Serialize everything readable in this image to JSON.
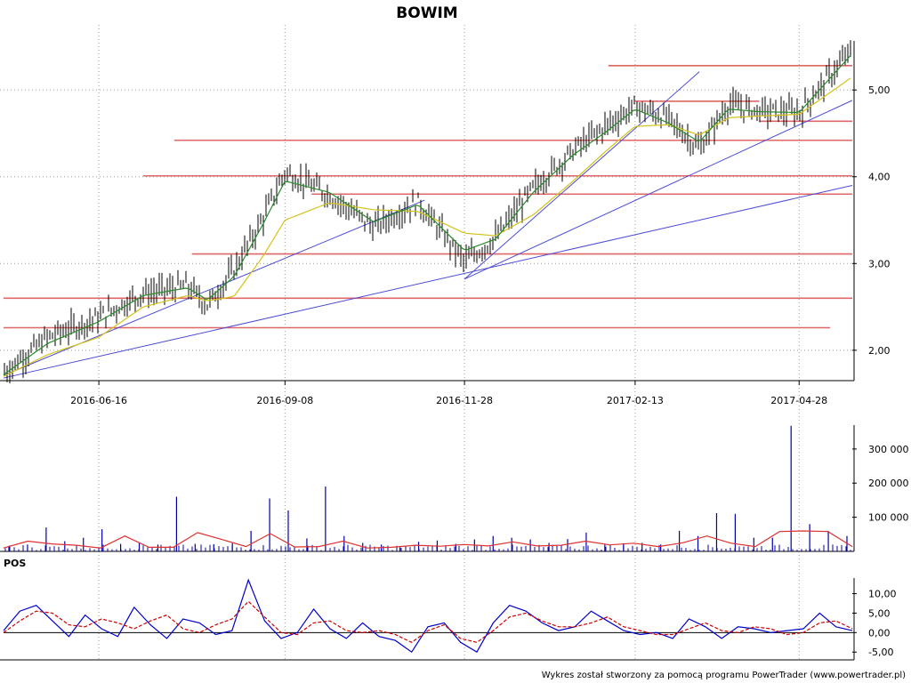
{
  "chart_data": [
    {
      "type": "ohlc",
      "title": "BOWIM",
      "x_ticks": [
        "2016-06-16",
        "2016-09-08",
        "2016-11-28",
        "2017-02-13",
        "2017-04-28"
      ],
      "y_ticks": [
        "2,00",
        "3,00",
        "4,00",
        "5,00"
      ],
      "ylim": [
        1.65,
        5.75
      ],
      "grid": true,
      "x_dates": [
        "2016-05-04",
        "2016-05-24",
        "2016-06-16",
        "2016-07-06",
        "2016-07-26",
        "2016-08-04",
        "2016-08-16",
        "2016-08-29",
        "2016-09-08",
        "2016-09-28",
        "2016-10-18",
        "2016-11-07",
        "2016-11-28",
        "2016-12-12",
        "2016-12-29",
        "2017-01-16",
        "2017-01-31",
        "2017-02-13",
        "2017-02-28",
        "2017-03-14",
        "2017-03-27",
        "2017-04-10",
        "2017-04-28",
        "2017-05-22"
      ],
      "close": [
        1.74,
        2.15,
        2.38,
        2.66,
        2.74,
        2.52,
        2.93,
        3.52,
        4.05,
        3.79,
        3.42,
        3.71,
        3.02,
        3.29,
        3.87,
        4.3,
        4.59,
        4.81,
        4.67,
        4.32,
        4.83,
        4.76,
        4.74,
        5.47
      ],
      "sma_short": [
        1.72,
        2.08,
        2.33,
        2.63,
        2.72,
        2.58,
        2.85,
        3.45,
        3.95,
        3.82,
        3.48,
        3.68,
        3.15,
        3.28,
        3.82,
        4.25,
        4.52,
        4.78,
        4.62,
        4.4,
        4.78,
        4.75,
        4.74,
        5.42
      ],
      "sma_long": [
        1.7,
        1.95,
        2.15,
        2.5,
        2.63,
        2.57,
        2.62,
        3.08,
        3.5,
        3.7,
        3.62,
        3.6,
        3.35,
        3.32,
        3.56,
        3.95,
        4.3,
        4.58,
        4.6,
        4.48,
        4.68,
        4.7,
        4.72,
        5.15
      ],
      "horizontal_levels": [
        {
          "from": "2016-07-20",
          "to": "2017-05-22",
          "value": 4.42
        },
        {
          "from": "2016-07-06",
          "to": "2017-05-22",
          "value": 4.01
        },
        {
          "from": "2016-09-20",
          "to": "2017-05-22",
          "value": 3.8
        },
        {
          "from": "2016-07-28",
          "to": "2017-05-22",
          "value": 3.11
        },
        {
          "from": "2016-05-04",
          "to": "2017-05-22",
          "value": 2.6
        },
        {
          "from": "2016-05-04",
          "to": "2017-05-12",
          "value": 2.26
        },
        {
          "from": "2017-02-01",
          "to": "2017-05-22",
          "value": 5.28
        },
        {
          "from": "2017-02-13",
          "to": "2017-04-10",
          "value": 4.87
        },
        {
          "from": "2017-04-10",
          "to": "2017-05-22",
          "value": 4.64
        }
      ],
      "trend_lines": [
        {
          "from": [
            "2016-05-04",
            1.71
          ],
          "to": [
            "2016-11-10",
            3.73
          ]
        },
        {
          "from": [
            "2016-05-04",
            1.68
          ],
          "to": [
            "2017-05-22",
            3.9
          ]
        },
        {
          "from": [
            "2016-11-28",
            2.82
          ],
          "to": [
            "2017-03-14",
            5.21
          ]
        },
        {
          "from": [
            "2016-11-28",
            2.82
          ],
          "to": [
            "2017-05-22",
            4.88
          ]
        }
      ]
    },
    {
      "type": "bar",
      "y_ticks": [
        "100 000",
        "200 000",
        "300 000"
      ],
      "ylim": [
        0,
        370000
      ],
      "values": [
        14000,
        20000,
        70000,
        30000,
        40000,
        65000,
        22000,
        26000,
        20000,
        160000,
        22000,
        21000,
        24000,
        60000,
        155000,
        120000,
        38000,
        190000,
        45000,
        25000,
        20000,
        12000,
        28000,
        32000,
        22000,
        35000,
        45000,
        40000,
        35000,
        25000,
        36000,
        55000,
        20000,
        24000,
        25000,
        20000,
        60000,
        45000,
        112000,
        110000,
        40000,
        40000,
        368000,
        80000,
        60000,
        45000
      ],
      "moving_average": [
        10000,
        30000,
        22000,
        18000,
        10000,
        45000,
        12000,
        12000,
        55000,
        35000,
        14000,
        52000,
        13000,
        14000,
        30000,
        10000,
        12000,
        18000,
        15000,
        20000,
        16000,
        28000,
        16000,
        18000,
        30000,
        19000,
        24000,
        14000,
        25000,
        45000,
        24000,
        14000,
        58000,
        60000,
        58000,
        14000
      ]
    },
    {
      "type": "line",
      "label": "POS",
      "y_ticks": [
        "10,00",
        "5,00",
        "0,00",
        "-5,00"
      ],
      "ylim": [
        -7.0,
        14.0
      ],
      "series": [
        {
          "color": "#0000cc",
          "values": [
            0.5,
            5.5,
            7.0,
            3.0,
            -1.0,
            4.5,
            1.0,
            -1.0,
            6.5,
            2.0,
            -1.5,
            3.5,
            2.5,
            -0.5,
            0.5,
            13.5,
            3.0,
            -1.5,
            0.0,
            6.0,
            1.0,
            -1.5,
            2.5,
            -1.0,
            -2.0,
            -5.0,
            1.5,
            2.5,
            -2.5,
            -5.0,
            2.5,
            7.0,
            5.5,
            2.5,
            0.5,
            1.5,
            5.5,
            3.0,
            0.5,
            -0.5,
            0.0,
            -1.5,
            3.5,
            1.5,
            -1.5,
            1.5,
            1.0,
            0.0,
            0.5,
            1.0,
            5.0,
            1.5,
            0.5
          ]
        },
        {
          "color": "#cc0000",
          "values": [
            0.0,
            3.0,
            5.5,
            5.0,
            2.0,
            1.5,
            3.5,
            2.5,
            1.0,
            3.0,
            4.5,
            1.0,
            0.0,
            2.0,
            3.5,
            8.0,
            4.0,
            0.0,
            -0.5,
            2.5,
            3.0,
            0.5,
            0.0,
            0.5,
            -0.5,
            -2.5,
            0.5,
            2.0,
            -1.5,
            -2.5,
            0.5,
            4.0,
            5.0,
            3.0,
            1.5,
            1.5,
            2.5,
            4.0,
            1.5,
            0.5,
            -0.5,
            -0.5,
            1.0,
            2.5,
            0.5,
            0.0,
            1.5,
            1.0,
            -0.5,
            0.0,
            2.5,
            3.0,
            1.0
          ]
        }
      ]
    }
  ],
  "footer": "Wykres został stworzony za pomocą programu PowerTrader (www.powertrader.pl)",
  "colors": {
    "level": "#e06666",
    "trend": "#4b4bd6",
    "sma_short": "#2a8a2a",
    "sma_long": "#d4c21a",
    "bar": "#0000aa",
    "vol_ma": "#e03030",
    "pos_blue": "#0000cc",
    "pos_red": "#cc0000"
  }
}
